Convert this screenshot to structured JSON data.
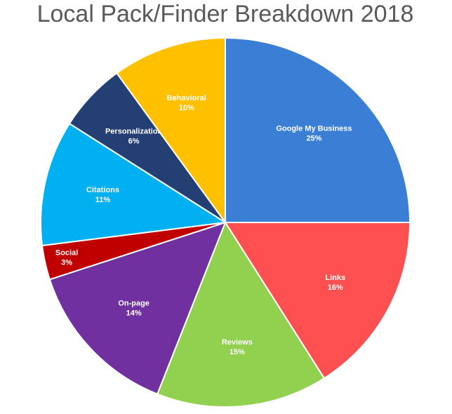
{
  "chart_data": {
    "type": "pie",
    "title": "Local Pack/Finder Breakdown 2018",
    "categories": [
      "Google My Business",
      "Links",
      "Reviews",
      "On-page",
      "Social",
      "Citations",
      "Personalization",
      "Behavioral"
    ],
    "values": [
      25,
      16,
      15,
      14,
      3,
      11,
      6,
      10
    ],
    "value_labels": [
      "25%",
      "16%",
      "15%",
      "14%",
      "3%",
      "11%",
      "6%",
      "10%"
    ],
    "colors": [
      "#3a7fd5",
      "#fe4f51",
      "#92d050",
      "#7030a0",
      "#c00000",
      "#00b0f0",
      "#243f73",
      "#ffc000"
    ]
  }
}
